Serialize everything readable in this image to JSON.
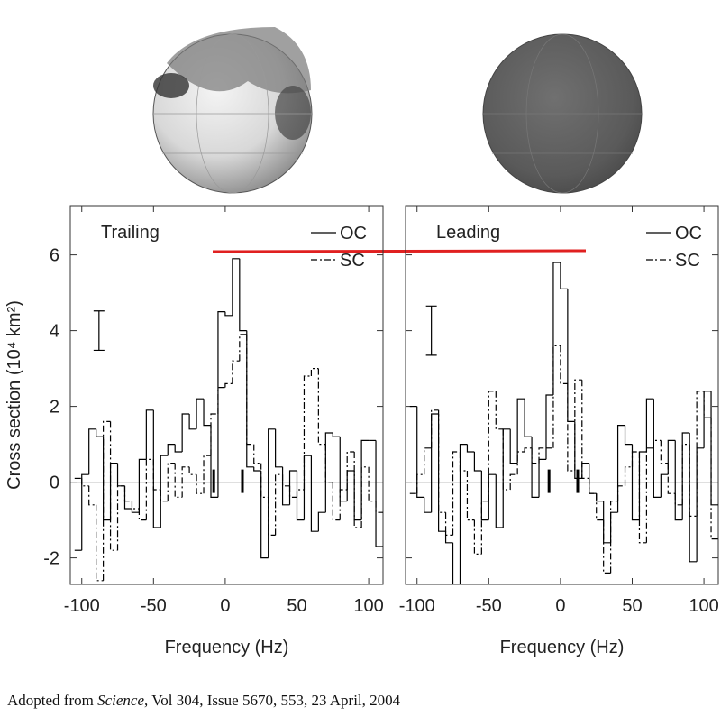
{
  "chart_data": [
    {
      "type": "histogram",
      "title": "Trailing",
      "xlabel": "Frequency (Hz)",
      "ylabel": "Cross section (10⁴ km²)",
      "bins": [
        -105,
        -100,
        -95,
        -90,
        -85,
        -80,
        -75,
        -70,
        -65,
        -60,
        -55,
        -50,
        -45,
        -40,
        -35,
        -30,
        -25,
        -20,
        -15,
        -10,
        -5,
        0,
        5,
        10,
        15,
        20,
        25,
        30,
        35,
        40,
        45,
        50,
        55,
        60,
        65,
        70,
        75,
        80,
        85,
        90,
        95,
        100,
        105,
        110
      ],
      "series": [
        {
          "name": "OC",
          "color": "#000000",
          "line_style": "solid",
          "values": [
            -1.8,
            0.2,
            1.4,
            1.2,
            -1.0,
            0.5,
            -0.1,
            -0.7,
            -0.8,
            0.6,
            1.9,
            -1.2,
            0.7,
            1.0,
            0.8,
            1.8,
            1.4,
            2.2,
            1.5,
            -0.4,
            4.5,
            4.4,
            5.9,
            4.0,
            0.4,
            0.3,
            -2.0,
            1.4,
            0.4,
            -0.6,
            0.3,
            -1.0,
            0.7,
            -1.3,
            -0.8,
            1.3,
            1.2,
            -0.5,
            0.3,
            -1.0,
            1.1,
            1.1,
            -1.7
          ]
        },
        {
          "name": "SC",
          "color": "#000000",
          "line_style": "dash-dot",
          "values": [
            0.1,
            -0.1,
            -0.6,
            -2.6,
            1.6,
            -1.8,
            -0.1,
            -0.5,
            -0.7,
            -1.0,
            0.6,
            -0.2,
            -0.5,
            0.5,
            -0.4,
            0.4,
            0.2,
            -0.3,
            0.7,
            1.8,
            2.5,
            2.6,
            3.2,
            3.9,
            1.0,
            0.5,
            -0.4,
            -1.4,
            0.2,
            -0.1,
            -0.4,
            -0.2,
            2.8,
            3.0,
            1.0,
            0.0,
            -1.0,
            -0.2,
            0.8,
            -1.2,
            0.4,
            -0.5,
            -0.8
          ]
        }
      ],
      "error_bar": {
        "x": -88,
        "y": 4.0,
        "error": 0.52
      },
      "markers": [
        -8,
        12
      ],
      "xlim": [
        -108,
        110
      ],
      "ylim": [
        -2.7,
        7.3
      ],
      "xticks": [
        -100,
        -50,
        0,
        50,
        100
      ],
      "yticks": [
        -2,
        0,
        2,
        4,
        6
      ]
    },
    {
      "type": "histogram",
      "title": "Leading",
      "xlabel": "Frequency (Hz)",
      "bins": [
        -105,
        -100,
        -95,
        -90,
        -85,
        -80,
        -75,
        -70,
        -65,
        -60,
        -55,
        -50,
        -45,
        -40,
        -35,
        -30,
        -25,
        -20,
        -15,
        -10,
        -5,
        0,
        5,
        10,
        15,
        20,
        25,
        30,
        35,
        40,
        45,
        50,
        55,
        60,
        65,
        70,
        75,
        80,
        85,
        90,
        95,
        100,
        105,
        110
      ],
      "series": [
        {
          "name": "OC",
          "color": "#000000",
          "line_style": "solid",
          "values": [
            2.0,
            -0.4,
            -0.8,
            1.8,
            -1.3,
            -1.6,
            -3.0,
            1.0,
            0.8,
            0.3,
            -1.0,
            0.2,
            -1.2,
            1.4,
            0.5,
            2.2,
            1.2,
            -0.4,
            0.6,
            2.3,
            5.8,
            5.1,
            1.6,
            0.1,
            0.5,
            -0.3,
            -0.5,
            -1.6,
            -0.8,
            1.5,
            1.0,
            -1.0,
            0.8,
            2.2,
            -0.4,
            0.2,
            1.1,
            -1.0,
            1.3,
            -2.1,
            0.9,
            2.4,
            -0.6
          ]
        },
        {
          "name": "SC",
          "color": "#000000",
          "line_style": "dash-dot",
          "values": [
            -0.3,
            0.2,
            0.9,
            1.9,
            -0.8,
            -1.4,
            0.8,
            0.3,
            -1.0,
            -1.9,
            -0.5,
            2.4,
            1.4,
            -0.2,
            0.2,
            0.8,
            0.9,
            0.5,
            0.9,
            0.9,
            3.6,
            2.6,
            0.3,
            2.7,
            0.1,
            -0.3,
            -1.0,
            -2.4,
            -0.5,
            -0.1,
            0.4,
            0.8,
            -1.6,
            0.9,
            1.1,
            0.5,
            -0.3,
            -0.6,
            1.0,
            -0.9,
            2.4,
            1.7,
            -1.5
          ]
        }
      ],
      "error_bar": {
        "x": -90,
        "y": 4.0,
        "error": 0.65
      },
      "markers": [
        -8,
        12
      ],
      "xlim": [
        -108,
        110
      ],
      "ylim": [
        -2.7,
        7.3
      ],
      "xticks": [
        -100,
        -50,
        0,
        50,
        100
      ],
      "yticks": [
        -2,
        0,
        2,
        4,
        6
      ]
    }
  ],
  "caption": {
    "prefix": "Adopted from ",
    "italic": "Science",
    "suffix": ", Vol 304, Issue 5670, 553, 23 April, 2004"
  }
}
